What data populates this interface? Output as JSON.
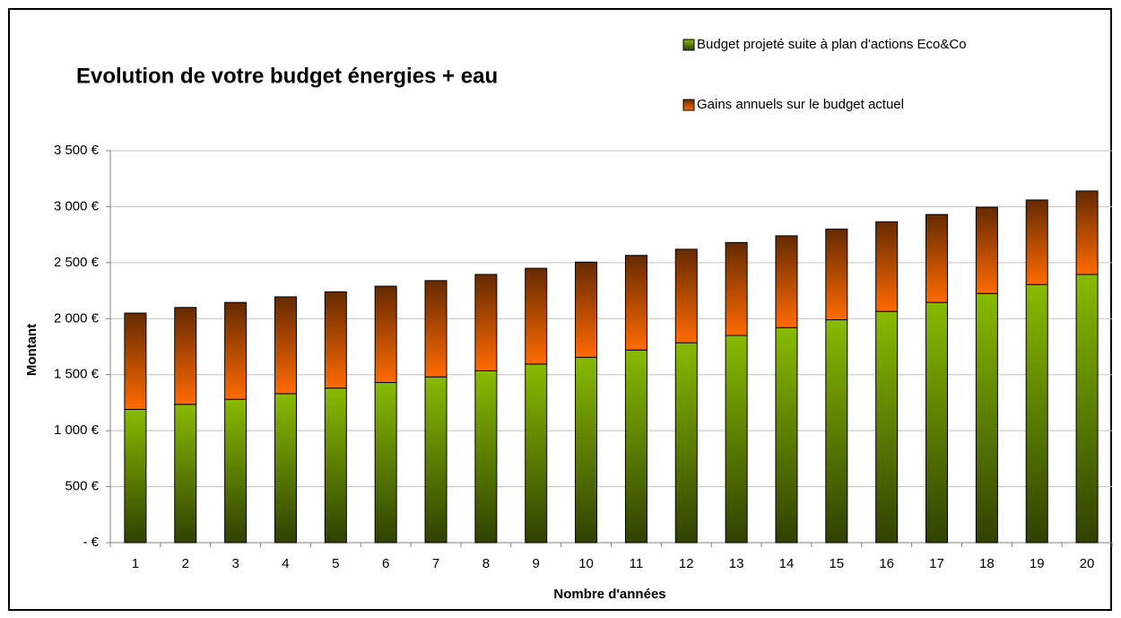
{
  "chart_data": {
    "type": "stacked_bar",
    "title": "Evolution de votre budget énergies + eau",
    "x_label": "Nombre d'années",
    "y_label": "Montant",
    "categories": [
      "1",
      "2",
      "3",
      "4",
      "5",
      "6",
      "7",
      "8",
      "9",
      "10",
      "11",
      "12",
      "13",
      "14",
      "15",
      "16",
      "17",
      "18",
      "19",
      "20"
    ],
    "series": [
      {
        "name": "Budget projeté suite à plan d'actions Eco&Co",
        "color": "#88bb00",
        "values": [
          1190,
          1235,
          1280,
          1330,
          1380,
          1430,
          1480,
          1535,
          1595,
          1655,
          1720,
          1785,
          1850,
          1920,
          1990,
          2065,
          2145,
          2225,
          2305,
          2395
        ]
      },
      {
        "name": "Gains annuels sur le budget actuel",
        "color": "#ff6a00",
        "values": [
          860,
          865,
          865,
          865,
          860,
          860,
          860,
          860,
          855,
          850,
          845,
          835,
          830,
          820,
          810,
          800,
          785,
          770,
          755,
          745
        ]
      }
    ],
    "ylim": [
      0,
      3500
    ],
    "yticks": [
      {
        "value": 0,
        "label": "-  €"
      },
      {
        "value": 500,
        "label": "500 €"
      },
      {
        "value": 1000,
        "label": "1 000 €"
      },
      {
        "value": 1500,
        "label": "1 500 €"
      },
      {
        "value": 2000,
        "label": "2 000 €"
      },
      {
        "value": 2500,
        "label": "2 500 €"
      },
      {
        "value": 3000,
        "label": "3 000 €"
      },
      {
        "value": 3500,
        "label": "3 500 €"
      }
    ],
    "grid": true
  }
}
